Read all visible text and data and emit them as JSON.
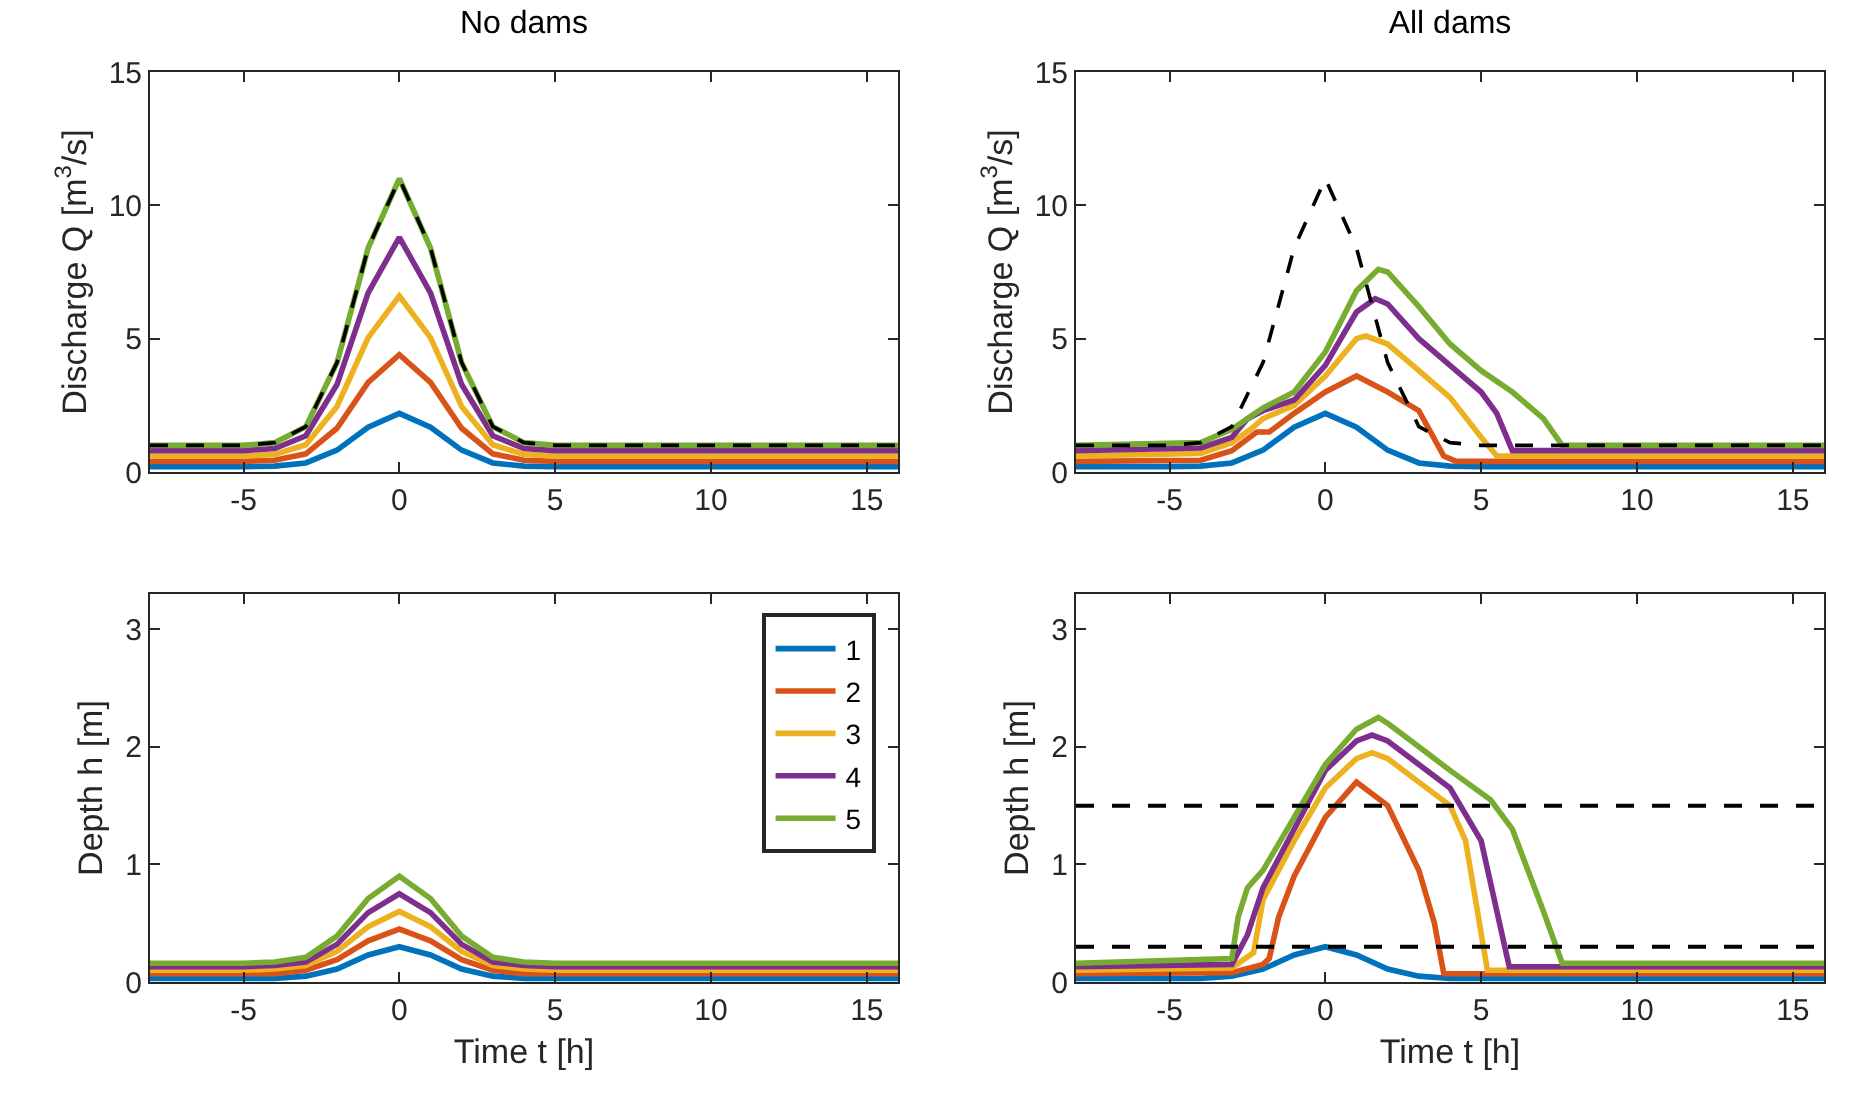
{
  "chart_data": [
    {
      "type": "line",
      "title": "No dams",
      "ylabel": "Discharge Q [m$^{3}$/s]",
      "x": [
        -8,
        -5,
        -4,
        -3,
        -2,
        -1,
        0,
        1,
        2,
        3,
        4,
        5,
        8,
        16
      ],
      "xlim": [
        -8,
        16
      ],
      "xticks": [
        -5,
        0,
        5,
        10,
        15
      ],
      "ylim": [
        0,
        15
      ],
      "yticks": [
        0,
        5,
        10,
        15
      ],
      "grid": false,
      "legend": false,
      "series": [
        {
          "color": "#0072bd",
          "values": [
            0.2,
            0.2,
            0.22,
            0.34,
            0.82,
            1.68,
            2.2,
            1.68,
            0.82,
            0.34,
            0.22,
            0.2,
            0.2,
            0.2
          ]
        },
        {
          "color": "#d95319",
          "values": [
            0.4,
            0.4,
            0.44,
            0.68,
            1.64,
            3.36,
            4.4,
            3.36,
            1.64,
            0.68,
            0.44,
            0.4,
            0.4,
            0.4
          ]
        },
        {
          "color": "#edb120",
          "values": [
            0.6,
            0.6,
            0.66,
            1.02,
            2.46,
            5.04,
            6.6,
            5.04,
            2.46,
            1.02,
            0.66,
            0.6,
            0.6,
            0.6
          ]
        },
        {
          "color": "#7e2f8e",
          "values": [
            0.8,
            0.8,
            0.88,
            1.36,
            3.28,
            6.72,
            8.8,
            6.72,
            3.28,
            1.36,
            0.88,
            0.8,
            0.8,
            0.8
          ]
        },
        {
          "color": "#77ac30",
          "values": [
            1,
            1,
            1.1,
            1.7,
            4.1,
            8.4,
            11,
            8.4,
            4.1,
            1.7,
            1.1,
            1,
            1,
            1
          ]
        },
        {
          "color": "#000000",
          "line_style": "dashed",
          "values": [
            1,
            1,
            1.1,
            1.7,
            4.1,
            8.4,
            11,
            8.4,
            4.1,
            1.7,
            1.1,
            1,
            1,
            1
          ]
        }
      ]
    },
    {
      "type": "line",
      "title": "All dams",
      "ylabel": "Discharge Q [m$^{3}$/s]",
      "x": [
        -8,
        -5,
        -4,
        -3,
        -2,
        -1,
        0,
        1,
        2,
        3,
        4,
        5,
        8,
        16
      ],
      "xlim": [
        -8,
        16
      ],
      "xticks": [
        -5,
        0,
        5,
        10,
        15
      ],
      "ylim": [
        0,
        15
      ],
      "yticks": [
        0,
        5,
        10,
        15
      ],
      "grid": false,
      "legend": false,
      "series": [
        {
          "color": "#0072bd",
          "values": [
            0.2,
            0.2,
            0.22,
            0.34,
            0.82,
            1.68,
            2.2,
            1.68,
            0.82,
            0.34,
            0.22,
            0.2,
            0.2,
            0.2
          ]
        },
        {
          "color": "#d95319",
          "x": [
            -8,
            -4,
            -3,
            -2.2,
            -1.8,
            -1,
            0,
            1,
            2,
            3,
            3.8,
            4.2,
            8,
            16
          ],
          "values": [
            0.4,
            0.44,
            0.8,
            1.5,
            1.5,
            2.2,
            3,
            3.6,
            3,
            2.3,
            0.6,
            0.4,
            0.4,
            0.4
          ]
        },
        {
          "color": "#edb120",
          "x": [
            -8,
            -4,
            -3,
            -2.4,
            -2,
            -1,
            0,
            1,
            1.3,
            2,
            3,
            4,
            5,
            5.5,
            8,
            16
          ],
          "values": [
            0.6,
            0.7,
            1.1,
            1.6,
            2,
            2.5,
            3.6,
            5,
            5.1,
            4.8,
            3.8,
            2.8,
            1.3,
            0.6,
            0.6,
            0.6
          ]
        },
        {
          "color": "#7e2f8e",
          "x": [
            -8,
            -4,
            -3,
            -2.5,
            -2,
            -1,
            0,
            1,
            1.6,
            2,
            3,
            4,
            5,
            5.5,
            6,
            8,
            16
          ],
          "values": [
            0.8,
            0.9,
            1.3,
            2,
            2.3,
            2.7,
            4,
            6,
            6.5,
            6.3,
            5,
            4,
            3,
            2.2,
            0.8,
            0.8,
            0.8
          ]
        },
        {
          "color": "#77ac30",
          "x": [
            -8,
            -4,
            -3,
            -2,
            -1,
            0,
            1,
            1.7,
            2,
            3,
            4,
            5,
            6,
            7,
            7.6,
            8,
            16
          ],
          "values": [
            1,
            1.1,
            1.6,
            2.4,
            3,
            4.5,
            6.8,
            7.6,
            7.5,
            6.2,
            4.8,
            3.8,
            3,
            2,
            1,
            1,
            1
          ]
        },
        {
          "color": "#000000",
          "line_style": "dashed",
          "values": [
            1,
            1,
            1.1,
            1.7,
            4.1,
            8.4,
            11,
            8.4,
            4.1,
            1.7,
            1.1,
            1,
            1,
            1
          ]
        }
      ]
    },
    {
      "type": "line",
      "xlabel": "Time t [h]",
      "ylabel": "Depth h [m]",
      "x": [
        -8,
        -5,
        -4,
        -3,
        -2,
        -1,
        0,
        1,
        2,
        3,
        4,
        5,
        8,
        16
      ],
      "xlim": [
        -8,
        16
      ],
      "xticks": [
        -5,
        0,
        5,
        10,
        15
      ],
      "ylim": [
        0,
        3.3
      ],
      "yticks": [
        0,
        1,
        2,
        3
      ],
      "grid": false,
      "legend": "top right",
      "series": [
        {
          "name": "1",
          "color": "#0072bd",
          "values": [
            0.03,
            0.03,
            0.03,
            0.05,
            0.11,
            0.23,
            0.3,
            0.23,
            0.11,
            0.05,
            0.03,
            0.03,
            0.03,
            0.03
          ]
        },
        {
          "name": "2",
          "color": "#d95319",
          "values": [
            0.07,
            0.07,
            0.07,
            0.1,
            0.19,
            0.35,
            0.45,
            0.35,
            0.19,
            0.1,
            0.07,
            0.07,
            0.07,
            0.07
          ]
        },
        {
          "name": "3",
          "color": "#edb120",
          "values": [
            0.1,
            0.1,
            0.11,
            0.14,
            0.26,
            0.47,
            0.6,
            0.47,
            0.26,
            0.14,
            0.11,
            0.1,
            0.1,
            0.1
          ]
        },
        {
          "name": "4",
          "color": "#7e2f8e",
          "values": [
            0.13,
            0.13,
            0.14,
            0.17,
            0.32,
            0.59,
            0.75,
            0.59,
            0.32,
            0.17,
            0.14,
            0.13,
            0.13,
            0.13
          ]
        },
        {
          "name": "5",
          "color": "#77ac30",
          "values": [
            0.16,
            0.16,
            0.17,
            0.21,
            0.39,
            0.71,
            0.9,
            0.71,
            0.39,
            0.21,
            0.17,
            0.16,
            0.16,
            0.16
          ]
        }
      ]
    },
    {
      "type": "line",
      "xlabel": "Time t [h]",
      "ylabel": "Depth h [m]",
      "x": [
        -8,
        -5,
        -4,
        -3,
        -2,
        -1,
        0,
        1,
        2,
        3,
        4,
        5,
        8,
        16
      ],
      "xlim": [
        -8,
        16
      ],
      "xticks": [
        -5,
        0,
        5,
        10,
        15
      ],
      "ylim": [
        0,
        3.3
      ],
      "yticks": [
        0,
        1,
        2,
        3
      ],
      "grid": false,
      "legend": false,
      "ref_lines": [
        {
          "axis": "y",
          "value": 1.5,
          "color": "#000000",
          "line_style": "dashed"
        },
        {
          "axis": "y",
          "value": 0.3,
          "color": "#000000",
          "line_style": "dashed"
        }
      ],
      "series": [
        {
          "color": "#0072bd",
          "values": [
            0.03,
            0.03,
            0.03,
            0.05,
            0.11,
            0.23,
            0.3,
            0.23,
            0.11,
            0.05,
            0.03,
            0.03,
            0.03,
            0.03
          ]
        },
        {
          "color": "#d95319",
          "x": [
            -8,
            -3,
            -2,
            -1.8,
            -1.5,
            -1,
            0,
            1,
            2,
            3,
            3.5,
            3.8,
            8,
            16
          ],
          "values": [
            0.07,
            0.08,
            0.15,
            0.2,
            0.55,
            0.9,
            1.4,
            1.7,
            1.5,
            0.95,
            0.5,
            0.07,
            0.07,
            0.07
          ]
        },
        {
          "color": "#edb120",
          "x": [
            -8,
            -3,
            -2.3,
            -2,
            -1,
            0,
            1,
            1.5,
            2,
            3,
            4,
            4.5,
            5.2,
            8,
            16
          ],
          "values": [
            0.1,
            0.12,
            0.25,
            0.7,
            1.2,
            1.65,
            1.9,
            1.95,
            1.9,
            1.7,
            1.5,
            1.2,
            0.1,
            0.1,
            0.1
          ]
        },
        {
          "color": "#7e2f8e",
          "x": [
            -8,
            -3,
            -2.5,
            -2,
            -1,
            0,
            1,
            1.5,
            2,
            3,
            4,
            5,
            5.9,
            8,
            16
          ],
          "values": [
            0.13,
            0.15,
            0.4,
            0.8,
            1.3,
            1.8,
            2.05,
            2.1,
            2.05,
            1.85,
            1.65,
            1.2,
            0.13,
            0.13,
            0.13
          ]
        },
        {
          "color": "#77ac30",
          "x": [
            -8,
            -3,
            -2.8,
            -2.5,
            -2,
            -1,
            0,
            1,
            1.7,
            2,
            3,
            4,
            5.3,
            6,
            7,
            7.6,
            8,
            16
          ],
          "values": [
            0.16,
            0.2,
            0.55,
            0.8,
            0.95,
            1.4,
            1.85,
            2.15,
            2.25,
            2.2,
            2,
            1.8,
            1.55,
            1.3,
            0.6,
            0.16,
            0.16,
            0.16
          ]
        }
      ]
    }
  ]
}
